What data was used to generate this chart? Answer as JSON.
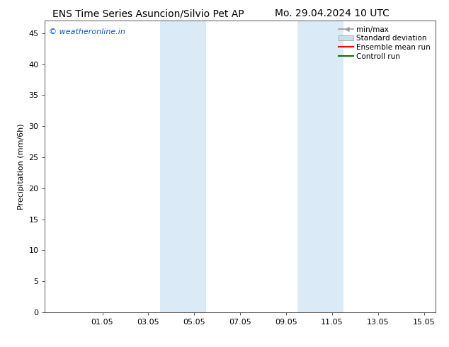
{
  "title": "ENS Time Series Asuncion/Silvio Pet AP        Mo. 29.04.2024 10 UTC",
  "title_left": "ENS Time Series Asuncion/Silvio Pet AP",
  "title_right": "Mo. 29.04.2024 10 UTC",
  "ylabel": "Precipitation (mm/6h)",
  "ylim": [
    0,
    47
  ],
  "yticks": [
    0,
    5,
    10,
    15,
    20,
    25,
    30,
    35,
    40,
    45
  ],
  "xtick_labels": [
    "01.05",
    "03.05",
    "05.05",
    "07.05",
    "09.05",
    "11.05",
    "13.05",
    "15.05"
  ],
  "xtick_positions": [
    2,
    4,
    6,
    8,
    10,
    12,
    14,
    16
  ],
  "xlim": [
    -0.5,
    16.5
  ],
  "background_color": "#ffffff",
  "plot_bg_color": "#ffffff",
  "shaded_regions": [
    {
      "x_start": 4.5,
      "x_end": 6.5
    },
    {
      "x_start": 10.5,
      "x_end": 12.5
    }
  ],
  "shaded_color": "#daeaf7",
  "watermark_text": "© weatheronline.in",
  "watermark_color": "#1155cc",
  "legend_labels": [
    "min/max",
    "Standard deviation",
    "Ensemble mean run",
    "Controll run"
  ],
  "legend_colors": [
    "#999999",
    "#c8dff0",
    "#ff0000",
    "#007700"
  ],
  "title_fontsize": 10,
  "axis_fontsize": 8,
  "ylabel_fontsize": 8,
  "watermark_fontsize": 8,
  "legend_fontsize": 7.5
}
